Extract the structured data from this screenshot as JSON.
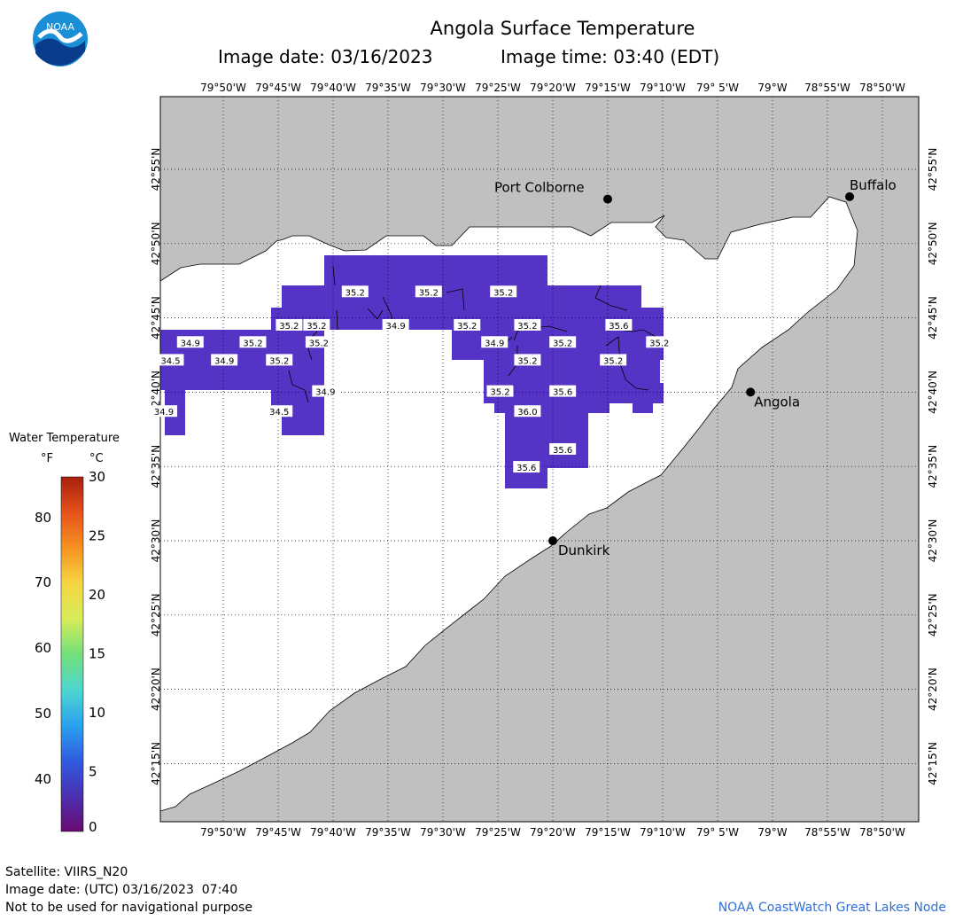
{
  "header": {
    "title": "Angola Surface Temperature",
    "image_date": "Image date: 03/16/2023",
    "image_time": "Image time: 03:40 (EDT)"
  },
  "logo": {
    "text": "NOAA",
    "icon": "noaa-logo-icon"
  },
  "axes": {
    "lon_labels": [
      "79°50'W",
      "79°45'W",
      "79°40'W",
      "79°35'W",
      "79°30'W",
      "79°25'W",
      "79°20'W",
      "79°15'W",
      "79°10'W",
      "79° 5'W",
      "79°W",
      "78°55'W",
      "78°50'W"
    ],
    "lat_labels": [
      "42°55'N",
      "42°50'N",
      "42°45'N",
      "42°40'N",
      "42°35'N",
      "42°30'N",
      "42°25'N",
      "42°20'N",
      "42°15'N"
    ]
  },
  "cities": [
    {
      "name": "Port Colborne",
      "lon": -79.25,
      "lat": 42.8833
    },
    {
      "name": "Buffalo",
      "lon": -78.883,
      "lat": 42.886
    },
    {
      "name": "Angola",
      "lon": -79.0333,
      "lat": 42.6667
    },
    {
      "name": "Dunkirk",
      "lon": -79.3333,
      "lat": 42.5
    }
  ],
  "temperature_labels": [
    {
      "value": "35.2",
      "lon": -79.6333,
      "lat": 42.7792
    },
    {
      "value": "35.2",
      "lon": -79.5217,
      "lat": 42.7792
    },
    {
      "value": "35.2",
      "lon": -79.4083,
      "lat": 42.7792
    },
    {
      "value": "35.2",
      "lon": -79.7333,
      "lat": 42.7417
    },
    {
      "value": "35.2",
      "lon": -79.6917,
      "lat": 42.7417
    },
    {
      "value": "34.9",
      "lon": -79.5717,
      "lat": 42.7417
    },
    {
      "value": "35.2",
      "lon": -79.4633,
      "lat": 42.7417
    },
    {
      "value": "35.2",
      "lon": -79.3717,
      "lat": 42.7417
    },
    {
      "value": "35.6",
      "lon": -79.2333,
      "lat": 42.7417
    },
    {
      "value": "34.9",
      "lon": -79.8833,
      "lat": 42.7225
    },
    {
      "value": "35.2",
      "lon": -79.7883,
      "lat": 42.7225
    },
    {
      "value": "35.2",
      "lon": -79.6883,
      "lat": 42.7225
    },
    {
      "value": "34.9",
      "lon": -79.4217,
      "lat": 42.7225
    },
    {
      "value": "35.2",
      "lon": -79.3183,
      "lat": 42.7225
    },
    {
      "value": "35.2",
      "lon": -79.1717,
      "lat": 42.7225
    },
    {
      "value": "34.5",
      "lon": -79.9133,
      "lat": 42.7025
    },
    {
      "value": "34.9",
      "lon": -79.8317,
      "lat": 42.7025
    },
    {
      "value": "35.2",
      "lon": -79.7483,
      "lat": 42.7025
    },
    {
      "value": "35.2",
      "lon": -79.3717,
      "lat": 42.7025
    },
    {
      "value": "35.2",
      "lon": -79.2417,
      "lat": 42.7025
    },
    {
      "value": "34.9",
      "lon": -79.6783,
      "lat": 42.6675
    },
    {
      "value": "35.2",
      "lon": -79.4133,
      "lat": 42.6675
    },
    {
      "value": "35.6",
      "lon": -79.3183,
      "lat": 42.6675
    },
    {
      "value": "34.9",
      "lon": -79.9233,
      "lat": 42.645
    },
    {
      "value": "34.5",
      "lon": -79.7483,
      "lat": 42.645
    },
    {
      "value": "36.0",
      "lon": -79.3717,
      "lat": 42.645
    },
    {
      "value": "35.6",
      "lon": -79.3183,
      "lat": 42.6025
    },
    {
      "value": "35.6",
      "lon": -79.3733,
      "lat": 42.5825
    }
  ],
  "legend": {
    "title": "Water Temperature",
    "unit_f": "°F",
    "unit_c": "°C",
    "f_ticks": [
      "80",
      "70",
      "60",
      "50",
      "40"
    ],
    "c_ticks": [
      "30",
      "25",
      "20",
      "15",
      "10",
      "5",
      "0"
    ],
    "colors": [
      "#6a0a73",
      "#4b2fb0",
      "#2f5ce0",
      "#2aa2ee",
      "#4fd6d0",
      "#73e07a",
      "#d7ec5a",
      "#f6d541",
      "#f79222",
      "#e4521a",
      "#a8200e"
    ]
  },
  "colors": {
    "land": "#c0c0c0",
    "water": "#ffffff",
    "cold_water": "#5533c4",
    "credit": "#2f6fd6"
  },
  "footer": {
    "satellite": "Satellite: VIIRS_N20",
    "utc": "Image date: (UTC) 03/16/2023  07:40",
    "disclaimer": "Not to be used for navigational purpose",
    "credit": "NOAA CoastWatch Great Lakes Node"
  }
}
